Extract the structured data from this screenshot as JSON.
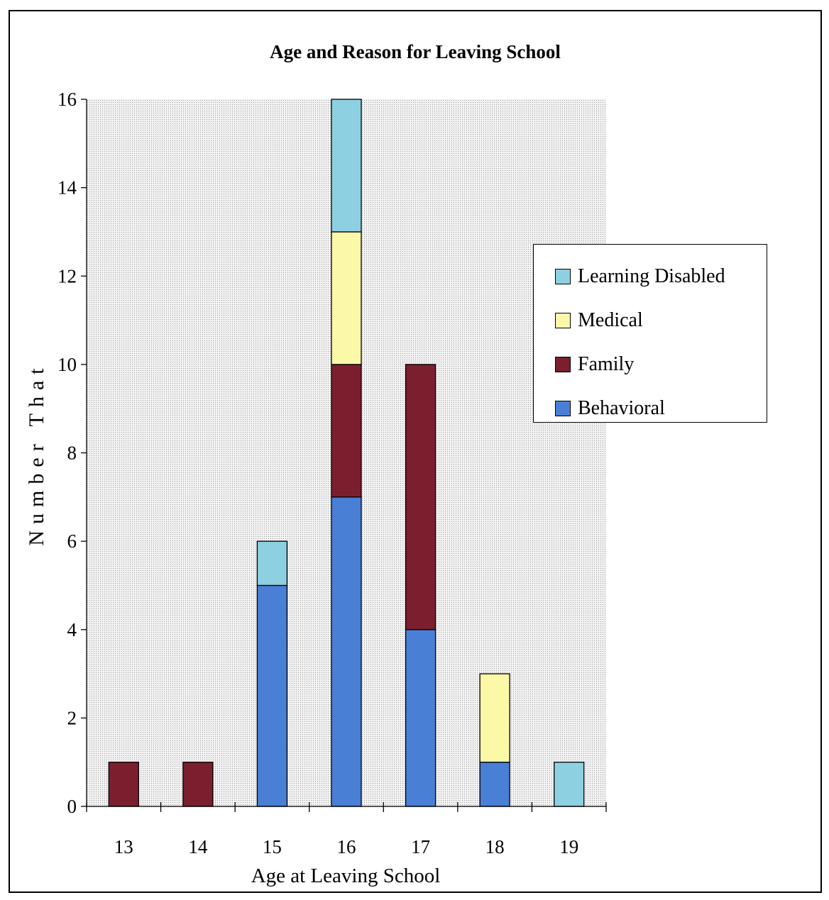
{
  "chart_data": {
    "type": "bar",
    "stacked": true,
    "title": "Age and Reason for Leaving School",
    "xlabel": "Age at Leaving School",
    "ylabel": "Number That",
    "categories": [
      "13",
      "14",
      "15",
      "16",
      "17",
      "18",
      "19"
    ],
    "ylim": [
      0,
      16
    ],
    "yticks": [
      0,
      2,
      4,
      6,
      8,
      10,
      12,
      14,
      16
    ],
    "grid": false,
    "legend_position": "right",
    "series": [
      {
        "name": "Behavioral",
        "color": "#4a7fd6",
        "values": [
          0,
          0,
          5,
          7,
          4,
          1,
          0
        ]
      },
      {
        "name": "Family",
        "color": "#7b1f2e",
        "values": [
          1,
          1,
          0,
          3,
          6,
          0,
          0
        ]
      },
      {
        "name": "Medical",
        "color": "#fbf8a8",
        "values": [
          0,
          0,
          0,
          3,
          0,
          2,
          0
        ]
      },
      {
        "name": "Learning Disabled",
        "color": "#8dd0e2",
        "values": [
          0,
          0,
          1,
          3,
          0,
          0,
          1
        ]
      }
    ],
    "legend_order": [
      "Learning Disabled",
      "Medical",
      "Family",
      "Behavioral"
    ],
    "plot_background": "#e8e8e8"
  }
}
